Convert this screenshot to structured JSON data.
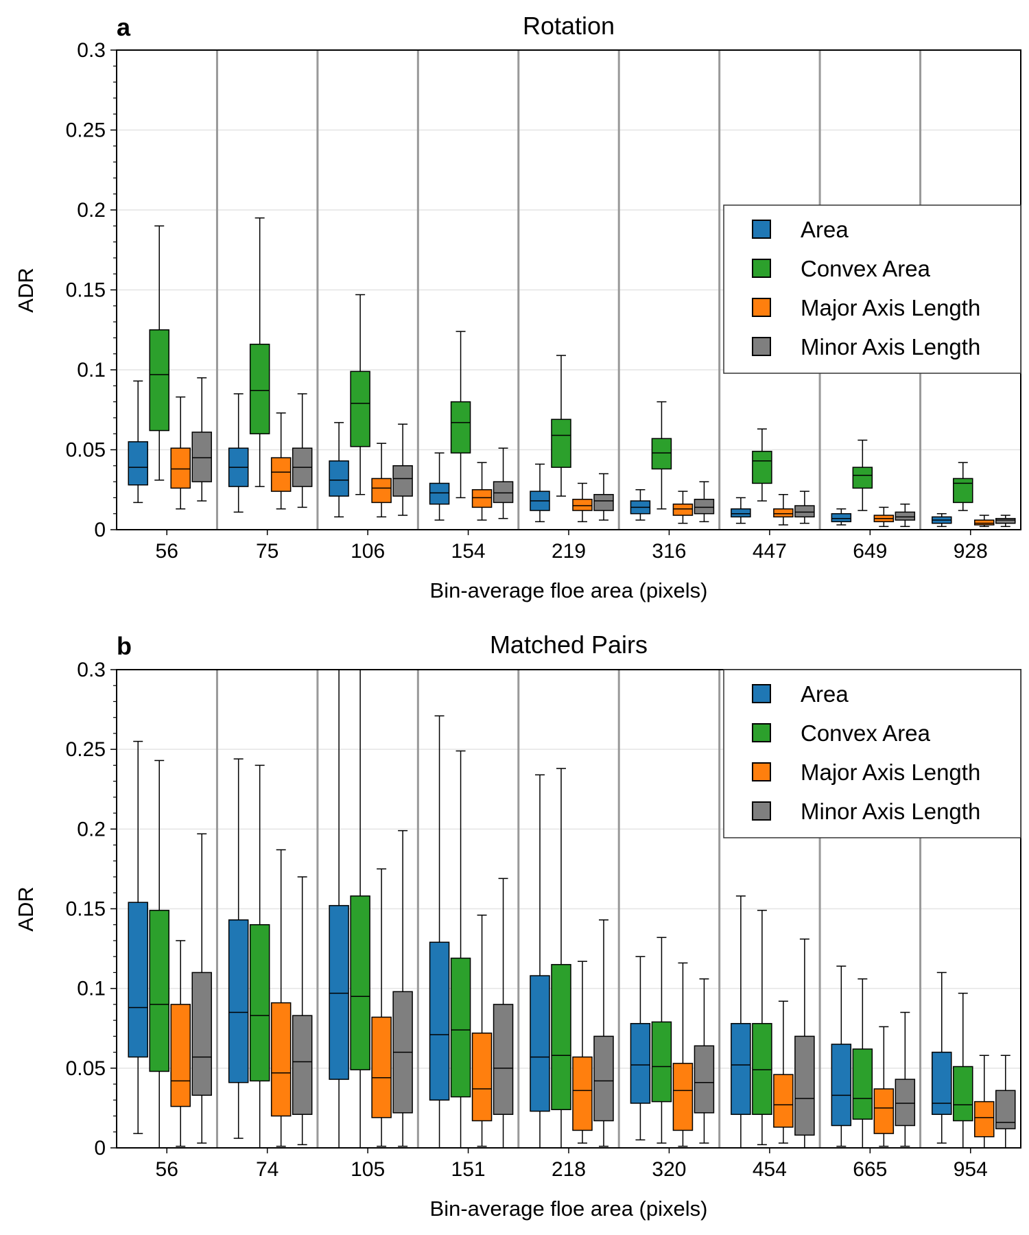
{
  "chart_data": [
    {
      "type": "box",
      "panel_label": "a",
      "title": "Rotation",
      "xlabel": "Bin-average floe area (pixels)",
      "ylabel": "ADR",
      "ylim": [
        0,
        0.3
      ],
      "yticks": [
        "0",
        "0.05",
        "0.1",
        "0.15",
        "0.2",
        "0.25",
        "0.3"
      ],
      "grid": "horizontal",
      "legend_position": "right-middle",
      "categories": [
        "56",
        "75",
        "106",
        "154",
        "219",
        "316",
        "447",
        "649",
        "928"
      ],
      "series": [
        {
          "name": "Area",
          "color": "#1f77b4",
          "boxes": [
            {
              "whislo": 0.017,
              "q1": 0.028,
              "med": 0.039,
              "q3": 0.055,
              "whishi": 0.093
            },
            {
              "whislo": 0.011,
              "q1": 0.027,
              "med": 0.039,
              "q3": 0.051,
              "whishi": 0.085
            },
            {
              "whislo": 0.008,
              "q1": 0.021,
              "med": 0.031,
              "q3": 0.043,
              "whishi": 0.067
            },
            {
              "whislo": 0.006,
              "q1": 0.016,
              "med": 0.023,
              "q3": 0.029,
              "whishi": 0.048
            },
            {
              "whislo": 0.005,
              "q1": 0.012,
              "med": 0.018,
              "q3": 0.024,
              "whishi": 0.041
            },
            {
              "whislo": 0.006,
              "q1": 0.01,
              "med": 0.014,
              "q3": 0.018,
              "whishi": 0.025
            },
            {
              "whislo": 0.004,
              "q1": 0.008,
              "med": 0.01,
              "q3": 0.013,
              "whishi": 0.02
            },
            {
              "whislo": 0.003,
              "q1": 0.005,
              "med": 0.007,
              "q3": 0.01,
              "whishi": 0.013
            },
            {
              "whislo": 0.002,
              "q1": 0.004,
              "med": 0.006,
              "q3": 0.008,
              "whishi": 0.01
            }
          ]
        },
        {
          "name": "Convex Area",
          "color": "#2ca02c",
          "boxes": [
            {
              "whislo": 0.031,
              "q1": 0.062,
              "med": 0.097,
              "q3": 0.125,
              "whishi": 0.19
            },
            {
              "whislo": 0.027,
              "q1": 0.06,
              "med": 0.087,
              "q3": 0.116,
              "whishi": 0.195
            },
            {
              "whislo": 0.022,
              "q1": 0.052,
              "med": 0.079,
              "q3": 0.099,
              "whishi": 0.147
            },
            {
              "whislo": 0.02,
              "q1": 0.048,
              "med": 0.067,
              "q3": 0.08,
              "whishi": 0.124
            },
            {
              "whislo": 0.021,
              "q1": 0.039,
              "med": 0.059,
              "q3": 0.069,
              "whishi": 0.109
            },
            {
              "whislo": 0.013,
              "q1": 0.038,
              "med": 0.048,
              "q3": 0.057,
              "whishi": 0.08
            },
            {
              "whislo": 0.018,
              "q1": 0.029,
              "med": 0.043,
              "q3": 0.049,
              "whishi": 0.063
            },
            {
              "whislo": 0.012,
              "q1": 0.026,
              "med": 0.034,
              "q3": 0.039,
              "whishi": 0.056
            },
            {
              "whislo": 0.012,
              "q1": 0.017,
              "med": 0.029,
              "q3": 0.032,
              "whishi": 0.042
            }
          ]
        },
        {
          "name": "Major Axis Length",
          "color": "#ff7f0e",
          "boxes": [
            {
              "whislo": 0.013,
              "q1": 0.026,
              "med": 0.038,
              "q3": 0.051,
              "whishi": 0.083
            },
            {
              "whislo": 0.013,
              "q1": 0.024,
              "med": 0.036,
              "q3": 0.045,
              "whishi": 0.073
            },
            {
              "whislo": 0.008,
              "q1": 0.017,
              "med": 0.026,
              "q3": 0.032,
              "whishi": 0.054
            },
            {
              "whislo": 0.006,
              "q1": 0.014,
              "med": 0.02,
              "q3": 0.025,
              "whishi": 0.042
            },
            {
              "whislo": 0.005,
              "q1": 0.012,
              "med": 0.015,
              "q3": 0.019,
              "whishi": 0.029
            },
            {
              "whislo": 0.004,
              "q1": 0.009,
              "med": 0.013,
              "q3": 0.016,
              "whishi": 0.024
            },
            {
              "whislo": 0.003,
              "q1": 0.008,
              "med": 0.01,
              "q3": 0.013,
              "whishi": 0.022
            },
            {
              "whislo": 0.002,
              "q1": 0.005,
              "med": 0.007,
              "q3": 0.009,
              "whishi": 0.014
            },
            {
              "whislo": 0.002,
              "q1": 0.003,
              "med": 0.004,
              "q3": 0.006,
              "whishi": 0.009
            }
          ]
        },
        {
          "name": "Minor Axis Length",
          "color": "#7f7f7f",
          "boxes": [
            {
              "whislo": 0.018,
              "q1": 0.03,
              "med": 0.045,
              "q3": 0.061,
              "whishi": 0.095
            },
            {
              "whislo": 0.014,
              "q1": 0.027,
              "med": 0.039,
              "q3": 0.051,
              "whishi": 0.085
            },
            {
              "whislo": 0.009,
              "q1": 0.021,
              "med": 0.032,
              "q3": 0.04,
              "whishi": 0.066
            },
            {
              "whislo": 0.007,
              "q1": 0.017,
              "med": 0.023,
              "q3": 0.03,
              "whishi": 0.051
            },
            {
              "whislo": 0.006,
              "q1": 0.012,
              "med": 0.018,
              "q3": 0.022,
              "whishi": 0.035
            },
            {
              "whislo": 0.005,
              "q1": 0.01,
              "med": 0.014,
              "q3": 0.019,
              "whishi": 0.03
            },
            {
              "whislo": 0.004,
              "q1": 0.008,
              "med": 0.011,
              "q3": 0.015,
              "whishi": 0.024
            },
            {
              "whislo": 0.002,
              "q1": 0.006,
              "med": 0.008,
              "q3": 0.011,
              "whishi": 0.016
            },
            {
              "whislo": 0.002,
              "q1": 0.004,
              "med": 0.006,
              "q3": 0.007,
              "whishi": 0.009
            }
          ]
        }
      ]
    },
    {
      "type": "box",
      "panel_label": "b",
      "title": "Matched Pairs",
      "xlabel": "Bin-average floe area (pixels)",
      "ylabel": "ADR",
      "ylim": [
        0,
        0.3
      ],
      "yticks": [
        "0",
        "0.05",
        "0.1",
        "0.15",
        "0.2",
        "0.25",
        "0.3"
      ],
      "grid": "horizontal",
      "legend_position": "top-right",
      "categories": [
        "56",
        "74",
        "105",
        "151",
        "218",
        "320",
        "454",
        "665",
        "954"
      ],
      "series": [
        {
          "name": "Area",
          "color": "#1f77b4",
          "boxes": [
            {
              "whislo": 0.009,
              "q1": 0.057,
              "med": 0.088,
              "q3": 0.154,
              "whishi": 0.255
            },
            {
              "whislo": 0.006,
              "q1": 0.041,
              "med": 0.085,
              "q3": 0.143,
              "whishi": 0.244
            },
            {
              "whislo": 0.0,
              "q1": 0.043,
              "med": 0.097,
              "q3": 0.152,
              "whishi": 0.3
            },
            {
              "whislo": 0.0,
              "q1": 0.03,
              "med": 0.071,
              "q3": 0.129,
              "whishi": 0.271
            },
            {
              "whislo": 0.0,
              "q1": 0.023,
              "med": 0.057,
              "q3": 0.108,
              "whishi": 0.234
            },
            {
              "whislo": 0.005,
              "q1": 0.028,
              "med": 0.052,
              "q3": 0.078,
              "whishi": 0.12
            },
            {
              "whislo": 0.0,
              "q1": 0.021,
              "med": 0.052,
              "q3": 0.078,
              "whishi": 0.158
            },
            {
              "whislo": 0.001,
              "q1": 0.014,
              "med": 0.033,
              "q3": 0.065,
              "whishi": 0.114
            },
            {
              "whislo": 0.003,
              "q1": 0.021,
              "med": 0.028,
              "q3": 0.06,
              "whishi": 0.11
            }
          ]
        },
        {
          "name": "Convex Area",
          "color": "#2ca02c",
          "boxes": [
            {
              "whislo": 0.0,
              "q1": 0.048,
              "med": 0.09,
              "q3": 0.149,
              "whishi": 0.243
            },
            {
              "whislo": 0.0,
              "q1": 0.042,
              "med": 0.083,
              "q3": 0.14,
              "whishi": 0.24
            },
            {
              "whislo": 0.0,
              "q1": 0.049,
              "med": 0.095,
              "q3": 0.158,
              "whishi": 0.3
            },
            {
              "whislo": 0.0,
              "q1": 0.032,
              "med": 0.074,
              "q3": 0.119,
              "whishi": 0.249
            },
            {
              "whislo": 0.0,
              "q1": 0.024,
              "med": 0.058,
              "q3": 0.115,
              "whishi": 0.238
            },
            {
              "whislo": 0.003,
              "q1": 0.029,
              "med": 0.051,
              "q3": 0.079,
              "whishi": 0.132
            },
            {
              "whislo": 0.002,
              "q1": 0.021,
              "med": 0.049,
              "q3": 0.078,
              "whishi": 0.149
            },
            {
              "whislo": 0.0,
              "q1": 0.018,
              "med": 0.031,
              "q3": 0.062,
              "whishi": 0.106
            },
            {
              "whislo": 0.0,
              "q1": 0.017,
              "med": 0.027,
              "q3": 0.051,
              "whishi": 0.097
            }
          ]
        },
        {
          "name": "Major Axis Length",
          "color": "#ff7f0e",
          "boxes": [
            {
              "whislo": 0.001,
              "q1": 0.026,
              "med": 0.042,
              "q3": 0.09,
              "whishi": 0.13
            },
            {
              "whislo": 0.001,
              "q1": 0.02,
              "med": 0.047,
              "q3": 0.091,
              "whishi": 0.187
            },
            {
              "whislo": 0.001,
              "q1": 0.019,
              "med": 0.044,
              "q3": 0.082,
              "whishi": 0.175
            },
            {
              "whislo": 0.001,
              "q1": 0.017,
              "med": 0.037,
              "q3": 0.072,
              "whishi": 0.146
            },
            {
              "whislo": 0.003,
              "q1": 0.011,
              "med": 0.036,
              "q3": 0.057,
              "whishi": 0.117
            },
            {
              "whislo": 0.001,
              "q1": 0.011,
              "med": 0.036,
              "q3": 0.053,
              "whishi": 0.116
            },
            {
              "whislo": 0.003,
              "q1": 0.013,
              "med": 0.027,
              "q3": 0.046,
              "whishi": 0.092
            },
            {
              "whislo": 0.001,
              "q1": 0.009,
              "med": 0.025,
              "q3": 0.037,
              "whishi": 0.076
            },
            {
              "whislo": 0.0,
              "q1": 0.007,
              "med": 0.019,
              "q3": 0.029,
              "whishi": 0.058
            }
          ]
        },
        {
          "name": "Minor Axis Length",
          "color": "#7f7f7f",
          "boxes": [
            {
              "whislo": 0.003,
              "q1": 0.033,
              "med": 0.057,
              "q3": 0.11,
              "whishi": 0.197
            },
            {
              "whislo": 0.002,
              "q1": 0.021,
              "med": 0.054,
              "q3": 0.083,
              "whishi": 0.17
            },
            {
              "whislo": 0.001,
              "q1": 0.022,
              "med": 0.06,
              "q3": 0.098,
              "whishi": 0.199
            },
            {
              "whislo": 0.0,
              "q1": 0.021,
              "med": 0.05,
              "q3": 0.09,
              "whishi": 0.169
            },
            {
              "whislo": 0.001,
              "q1": 0.017,
              "med": 0.042,
              "q3": 0.07,
              "whishi": 0.143
            },
            {
              "whislo": 0.003,
              "q1": 0.022,
              "med": 0.041,
              "q3": 0.064,
              "whishi": 0.106
            },
            {
              "whislo": 0.0,
              "q1": 0.008,
              "med": 0.031,
              "q3": 0.07,
              "whishi": 0.131
            },
            {
              "whislo": 0.001,
              "q1": 0.014,
              "med": 0.028,
              "q3": 0.043,
              "whishi": 0.085
            },
            {
              "whislo": 0.0,
              "q1": 0.012,
              "med": 0.016,
              "q3": 0.036,
              "whishi": 0.058
            }
          ]
        }
      ]
    }
  ]
}
